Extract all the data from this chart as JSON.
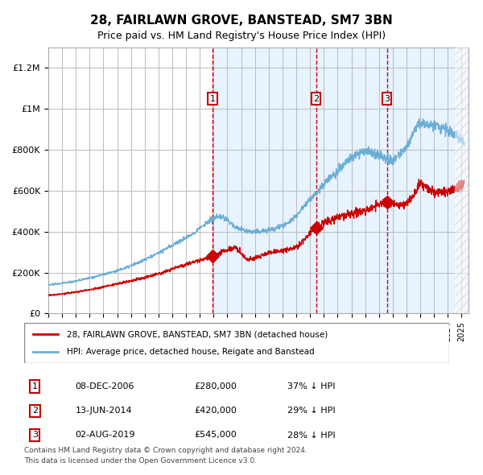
{
  "title": "28, FAIRLAWN GROVE, BANSTEAD, SM7 3BN",
  "subtitle": "Price paid vs. HM Land Registry's House Price Index (HPI)",
  "legend_line1": "28, FAIRLAWN GROVE, BANSTEAD, SM7 3BN (detached house)",
  "legend_line2": "HPI: Average price, detached house, Reigate and Banstead",
  "table": [
    {
      "num": "1",
      "date": "08-DEC-2006",
      "price": "£280,000",
      "note": "37% ↓ HPI"
    },
    {
      "num": "2",
      "date": "13-JUN-2014",
      "price": "£420,000",
      "note": "29% ↓ HPI"
    },
    {
      "num": "3",
      "date": "02-AUG-2019",
      "price": "£545,000",
      "note": "28% ↓ HPI"
    }
  ],
  "footnote1": "Contains HM Land Registry data © Crown copyright and database right 2024.",
  "footnote2": "This data is licensed under the Open Government Licence v3.0.",
  "sale_dates": [
    2006.93,
    2014.44,
    2019.58
  ],
  "sale_prices": [
    280000,
    420000,
    545000
  ],
  "hpi_color": "#6baed6",
  "price_color": "#cc0000",
  "vline_color": "#cc0000",
  "shade_color": "#ddeeff",
  "background_color": "#ffffff",
  "grid_color": "#bbbbbb",
  "ylim": [
    0,
    1300000
  ],
  "xlim_start": 1995.0,
  "xlim_end": 2025.5
}
